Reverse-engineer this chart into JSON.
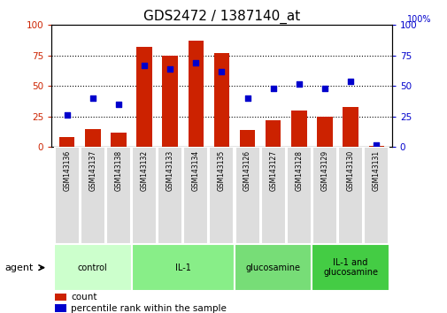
{
  "title": "GDS2472 / 1387140_at",
  "samples": [
    "GSM143136",
    "GSM143137",
    "GSM143138",
    "GSM143132",
    "GSM143133",
    "GSM143134",
    "GSM143135",
    "GSM143126",
    "GSM143127",
    "GSM143128",
    "GSM143129",
    "GSM143130",
    "GSM143131"
  ],
  "counts": [
    8,
    15,
    12,
    82,
    75,
    87,
    77,
    14,
    22,
    30,
    25,
    33,
    1
  ],
  "percentiles": [
    26,
    40,
    35,
    67,
    64,
    69,
    62,
    40,
    48,
    52,
    48,
    54,
    2
  ],
  "groups": [
    {
      "label": "control",
      "start": 0,
      "end": 3,
      "color": "#ccffcc"
    },
    {
      "label": "IL-1",
      "start": 3,
      "end": 7,
      "color": "#88ee88"
    },
    {
      "label": "glucosamine",
      "start": 7,
      "end": 10,
      "color": "#77dd77"
    },
    {
      "label": "IL-1 and\nglucosamine",
      "start": 10,
      "end": 13,
      "color": "#44cc44"
    }
  ],
  "bar_color": "#cc2200",
  "dot_color": "#0000cc",
  "bar_width": 0.6,
  "ylim_left": [
    0,
    100
  ],
  "ylim_right": [
    0,
    100
  ],
  "legend_count_label": "count",
  "legend_pct_label": "percentile rank within the sample",
  "tick_color_left": "#cc2200",
  "tick_color_right": "#0000cc",
  "title_fontsize": 11,
  "dotted_lines": [
    25,
    50,
    75
  ],
  "agent_label": "agent",
  "sample_bg_color": "#dddddd",
  "sample_border_color": "#ffffff",
  "yticks": [
    0,
    25,
    50,
    75,
    100
  ]
}
